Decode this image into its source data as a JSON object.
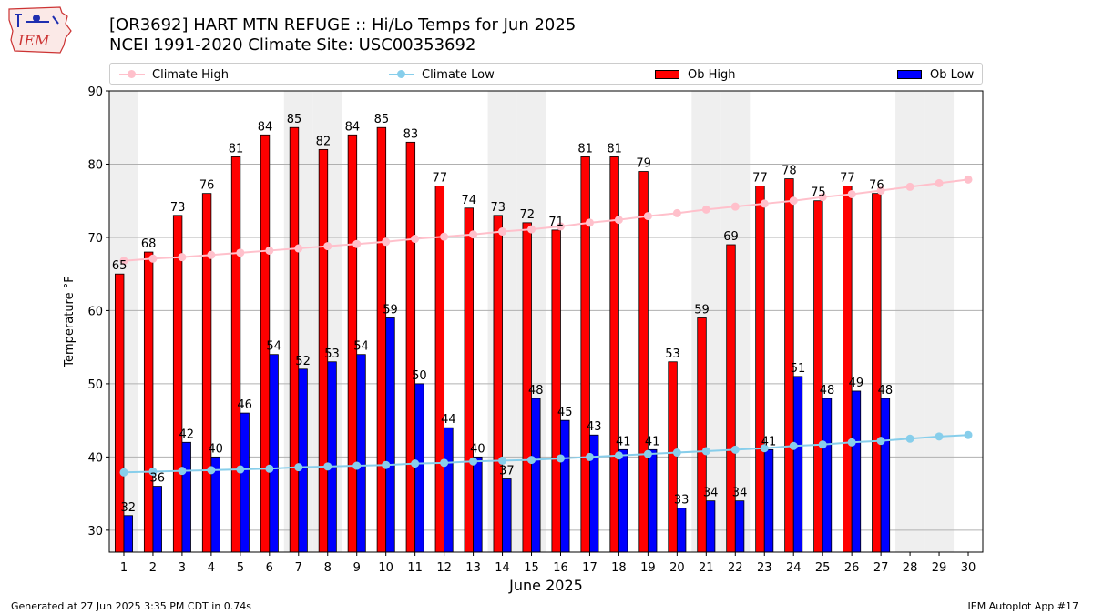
{
  "header": {
    "title_line1": "[OR3692] HART MTN REFUGE :: Hi/Lo Temps for Jun 2025",
    "title_line2": "NCEI 1991-2020 Climate Site: USC00353692",
    "logo_text": "IEM"
  },
  "footer": {
    "generated": "Generated at 27 Jun 2025 3:35 PM CDT in 0.74s",
    "app": "IEM Autoplot App #17"
  },
  "colors": {
    "ob_high": "#ff0000",
    "ob_low": "#0000ff",
    "climate_high": "#ffc0cb",
    "climate_low": "#87ceeb",
    "weekend_shade": "#efefef",
    "grid": "#b0b0b0"
  },
  "chart_data": {
    "type": "bar",
    "xlabel": "June 2025",
    "ylabel": "Temperature °F",
    "ylim": [
      27,
      90
    ],
    "yticks": [
      30,
      40,
      50,
      60,
      70,
      80,
      90
    ],
    "grid": "horizontal",
    "legend_position": "top",
    "categories": [
      "1",
      "2",
      "3",
      "4",
      "5",
      "6",
      "7",
      "8",
      "9",
      "10",
      "11",
      "12",
      "13",
      "14",
      "15",
      "16",
      "17",
      "18",
      "19",
      "20",
      "21",
      "22",
      "23",
      "24",
      "25",
      "26",
      "27",
      "28",
      "29",
      "30"
    ],
    "shaded_days": [
      1,
      7,
      8,
      14,
      15,
      21,
      22,
      28,
      29
    ],
    "series": [
      {
        "name": "Ob High",
        "kind": "bar",
        "values": [
          65,
          68,
          73,
          76,
          81,
          84,
          85,
          82,
          84,
          85,
          83,
          77,
          74,
          73,
          72,
          71,
          81,
          81,
          79,
          53,
          59,
          69,
          77,
          78,
          75,
          77,
          76,
          null,
          null,
          null
        ]
      },
      {
        "name": "Ob Low",
        "kind": "bar",
        "values": [
          32,
          36,
          42,
          40,
          46,
          54,
          52,
          53,
          54,
          59,
          50,
          44,
          40,
          37,
          48,
          45,
          43,
          41,
          41,
          33,
          34,
          34,
          41,
          51,
          48,
          49,
          48,
          null,
          null,
          null
        ]
      },
      {
        "name": "Climate High",
        "kind": "line",
        "values": [
          66.8,
          67.1,
          67.3,
          67.6,
          67.9,
          68.2,
          68.5,
          68.8,
          69.1,
          69.4,
          69.8,
          70.1,
          70.4,
          70.8,
          71.1,
          71.5,
          72.0,
          72.4,
          72.9,
          73.3,
          73.8,
          74.2,
          74.6,
          75.0,
          75.5,
          75.9,
          76.4,
          76.9,
          77.4,
          77.9
        ]
      },
      {
        "name": "Climate Low",
        "kind": "line",
        "values": [
          37.9,
          38.0,
          38.1,
          38.2,
          38.3,
          38.4,
          38.6,
          38.7,
          38.8,
          38.9,
          39.1,
          39.2,
          39.4,
          39.5,
          39.6,
          39.8,
          40.0,
          40.2,
          40.4,
          40.6,
          40.8,
          41.0,
          41.2,
          41.5,
          41.7,
          42.0,
          42.2,
          42.5,
          42.8,
          43.0
        ]
      }
    ]
  }
}
